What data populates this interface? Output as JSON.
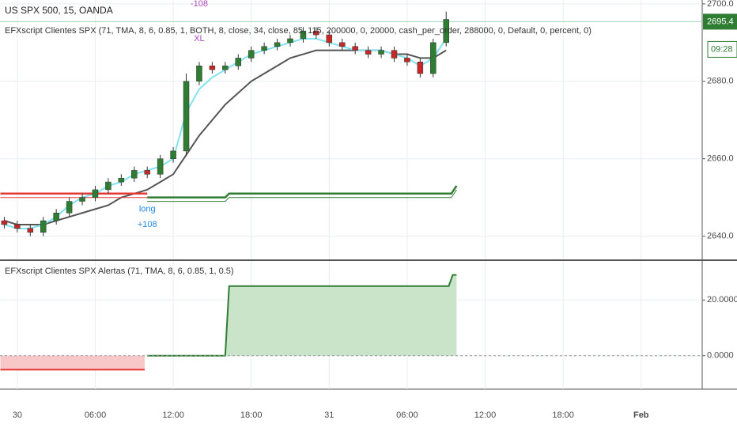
{
  "chart_data": [
    {
      "type": "candlestick",
      "title": "US SPX 500, 15, OANDA",
      "subtitle": "EFXscript Clientes SPX (71, TMA, 8, 6, 0.85, 1, BOTH, 8, close, 34, close, 85, 115, 200000, 0, 20000, cash_per_order, 288000, 0, Default, 0, percent, 0)",
      "x": [
        -1,
        0,
        1,
        2,
        3,
        4,
        5,
        6,
        7,
        8,
        9,
        10,
        11,
        12,
        13,
        14,
        15,
        16,
        17,
        18,
        19,
        20,
        21,
        22,
        23,
        24,
        25,
        26,
        27,
        28,
        29,
        30,
        31,
        32,
        33
      ],
      "open": [
        2644,
        2643,
        2642,
        2641,
        2644,
        2646,
        2649,
        2650,
        2652,
        2654,
        2655,
        2657,
        2656,
        2660,
        2662,
        2680,
        2684,
        2683,
        2684,
        2686,
        2688,
        2689,
        2690,
        2691,
        2693,
        2692,
        2690,
        2689,
        2688,
        2687,
        2688,
        2686,
        2685,
        2682,
        2690
      ],
      "high": [
        2645,
        2644,
        2643,
        2645,
        2647,
        2650,
        2651,
        2653,
        2655,
        2656,
        2658,
        2658,
        2661,
        2663,
        2682,
        2685,
        2685,
        2685,
        2687,
        2689,
        2690,
        2691,
        2692,
        2694,
        2694,
        2693,
        2691,
        2690,
        2689,
        2689,
        2689,
        2687,
        2686,
        2691,
        2698
      ],
      "low": [
        2642,
        2641,
        2640,
        2640,
        2643,
        2645,
        2648,
        2649,
        2651,
        2653,
        2654,
        2655,
        2655,
        2659,
        2661,
        2679,
        2682,
        2682,
        2683,
        2685,
        2687,
        2688,
        2689,
        2690,
        2691,
        2689,
        2688,
        2687,
        2686,
        2686,
        2685,
        2684,
        2681,
        2681,
        2689
      ],
      "close": [
        2643,
        2642,
        2641,
        2644,
        2646,
        2649,
        2650,
        2652,
        2654,
        2655,
        2657,
        2656,
        2660,
        2662,
        2680,
        2684,
        2683,
        2684,
        2686,
        2688,
        2689,
        2690,
        2691,
        2693,
        2692,
        2690,
        2689,
        2688,
        2687,
        2688,
        2686,
        2685,
        2682,
        2690,
        2696
      ],
      "up_color": "#2e7d32",
      "down_color": "#c62828",
      "series": [
        {
          "color": "#555555",
          "values": [
            2644,
            2643,
            2643,
            2643,
            2644,
            2645,
            2646,
            2647,
            2648,
            2650,
            2651,
            2652,
            2654,
            2656,
            2661,
            2666,
            2670,
            2674,
            2677,
            2680,
            2682,
            2684,
            2686,
            2687,
            2688,
            2688,
            2688,
            2688,
            2688,
            2688,
            2687,
            2687,
            2686,
            2686,
            2688
          ]
        },
        {
          "color": "#7fe3f0",
          "values": [
            2643,
            2642,
            2642,
            2643,
            2645,
            2648,
            2650,
            2651,
            2653,
            2654,
            2656,
            2657,
            2658,
            2660,
            2672,
            2678,
            2681,
            2683,
            2685,
            2687,
            2688,
            2689,
            2690,
            2691,
            2691,
            2690,
            2689,
            2688,
            2688,
            2688,
            2687,
            2686,
            2684,
            2686,
            2691
          ]
        },
        {
          "color": "#e53935",
          "x": [
            -1.3,
            10
          ],
          "values": [
            2651,
            2651
          ]
        },
        {
          "color": "#2e7d32",
          "x": [
            10,
            16,
            16.3,
            33.4,
            33.8
          ],
          "values": [
            2650,
            2650,
            2651,
            2651,
            2653
          ]
        }
      ],
      "annotations": [
        {
          "text": "long",
          "x": 10,
          "y": 2647,
          "color": "#1e88e5"
        },
        {
          "text": "+108",
          "x": 10,
          "y": 2643,
          "color": "#1e88e5"
        },
        {
          "text": "-108",
          "x": 14,
          "y": 2700,
          "color": "#ab47bc"
        },
        {
          "text": "XL",
          "x": 14,
          "y": 2691,
          "color": "#ab47bc"
        }
      ],
      "last_price": 2695.4,
      "countdown": "09:28",
      "xlim": [
        -1.33,
        52.7
      ],
      "xticks": [
        {
          "value": 0,
          "label": "30"
        },
        {
          "value": 6,
          "label": "06:00"
        },
        {
          "value": 12,
          "label": "12:00"
        },
        {
          "value": 18,
          "label": "18:00"
        },
        {
          "value": 24,
          "label": "31"
        },
        {
          "value": 30,
          "label": "06:00"
        },
        {
          "value": 36,
          "label": "12:00"
        },
        {
          "value": 42,
          "label": "18:00"
        },
        {
          "value": 48,
          "label": "Feb"
        }
      ],
      "ylim": [
        2634,
        2701
      ],
      "yticks": [
        {
          "value": 2640,
          "label": "2640.0"
        },
        {
          "value": 2660,
          "label": "2660.0"
        },
        {
          "value": 2680,
          "label": "2680.0"
        },
        {
          "value": 2700,
          "label": "2700.0"
        }
      ],
      "grid": true
    },
    {
      "type": "area",
      "title": "EFXscript Clientes SPX Alertas (71, TMA, 8, 6, 0.85, 1, 0.5)",
      "series": [
        {
          "color": "#e53935",
          "fill": "#f8c7c7",
          "x": [
            -1.3,
            9.8
          ],
          "values": [
            -5,
            -5
          ]
        },
        {
          "color": "#2e7d32",
          "fill": "#c9e4c9",
          "x": [
            10,
            16,
            16.3,
            33.2,
            33.5,
            33.8
          ],
          "values": [
            0,
            0,
            25,
            25,
            29,
            29
          ]
        }
      ],
      "xlim": [
        -1.33,
        52.7
      ],
      "ylim": [
        -12,
        34
      ],
      "yticks": [
        {
          "value": 0,
          "label": "0.0000"
        },
        {
          "value": 20,
          "label": "20.0000"
        }
      ],
      "zero_line": true,
      "grid": true
    }
  ]
}
